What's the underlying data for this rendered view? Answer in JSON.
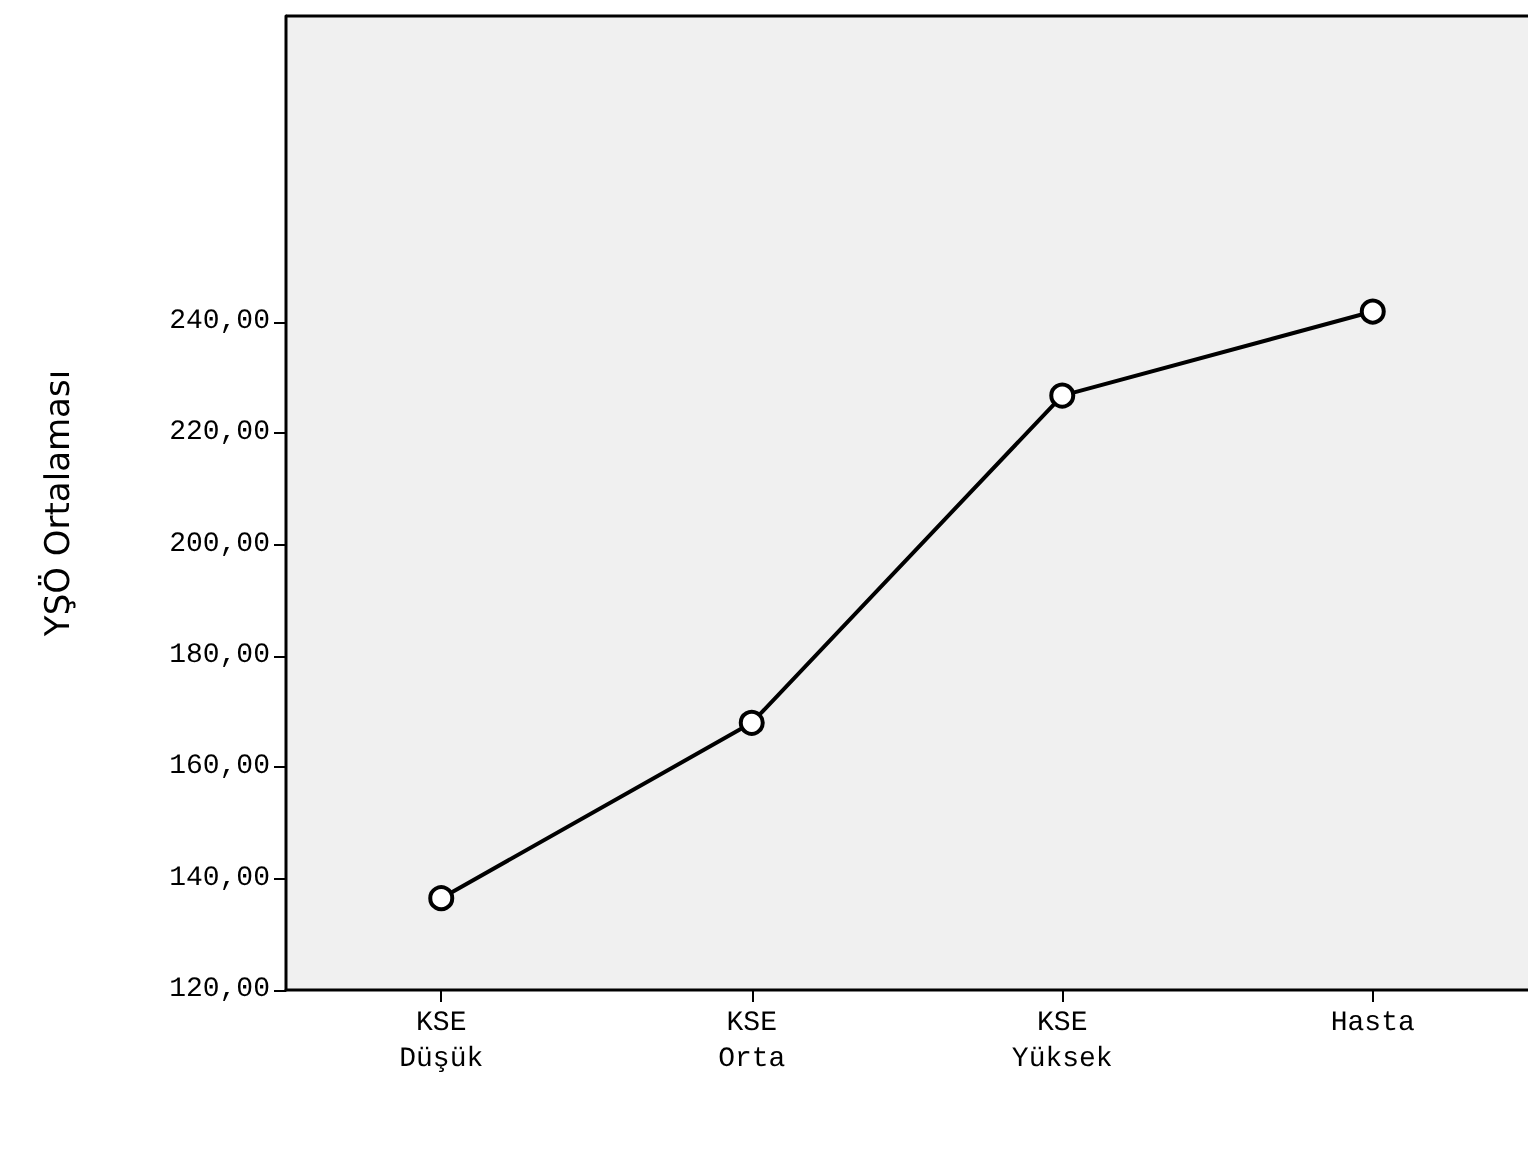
{
  "chart_data": {
    "type": "line",
    "ylabel": "YŞÖ Ortalaması",
    "categories": [
      "KSE Düşük",
      "KSE Orta",
      "KSE Yüksek",
      "Hasta"
    ],
    "series": [
      {
        "color": "#000000",
        "values": [
          136.5,
          168,
          226.8,
          241.9
        ]
      }
    ],
    "ylim": [
      120,
      295
    ],
    "yticks": [
      {
        "value": 120,
        "label": "120,00"
      },
      {
        "value": 140,
        "label": "140,00"
      },
      {
        "value": 160,
        "label": "160,00"
      },
      {
        "value": 180,
        "label": "180,00"
      },
      {
        "value": 200,
        "label": "200,00"
      },
      {
        "value": 220,
        "label": "220,00"
      },
      {
        "value": 240,
        "label": "240,00"
      }
    ],
    "grid": false,
    "marker": "circle",
    "line_style": "solid"
  }
}
